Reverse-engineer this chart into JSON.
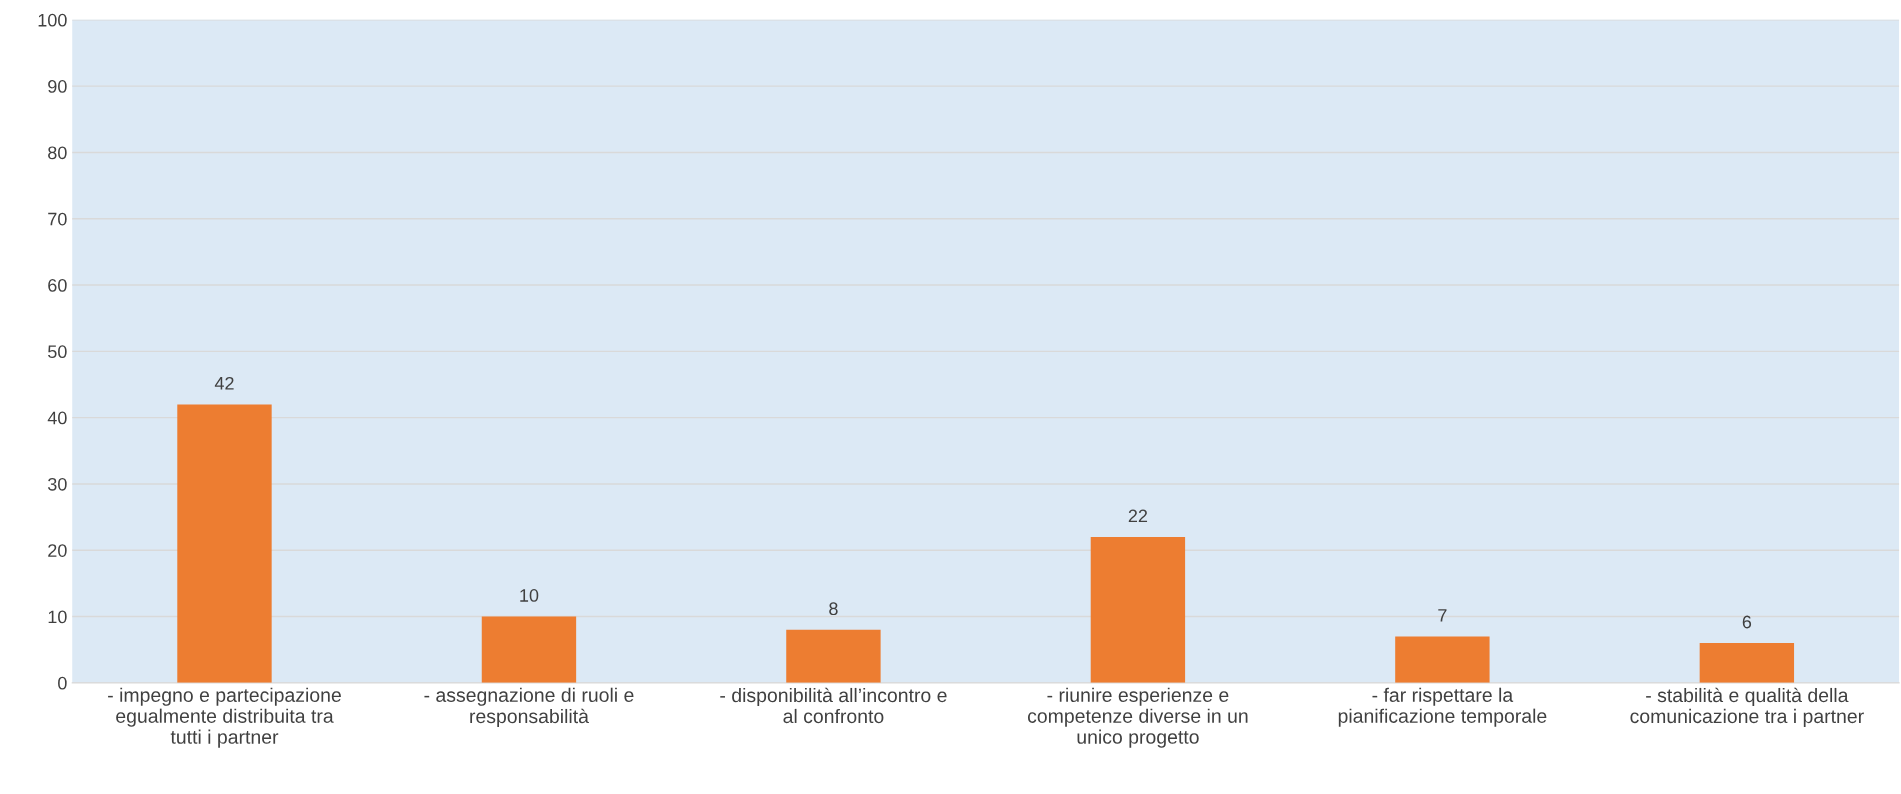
{
  "chart_data": {
    "type": "bar",
    "categories": [
      "- impegno e partecipazione\negualmente distribuita tra\ntutti i partner",
      "- assegnazione di ruoli e\nresponsabilità",
      "- disponibilità all’incontro e\nal confronto",
      "- riunire esperienze e\ncompetenze diverse in un\nunico progetto",
      "- far rispettare la\npianificazione temporale",
      "- stabilità e qualità della\ncomunicazione tra i partner"
    ],
    "values": [
      42,
      10,
      8,
      22,
      7,
      6
    ],
    "color": "#ed7d31",
    "ylim": [
      0,
      100
    ],
    "yticks": [
      0,
      10,
      20,
      30,
      40,
      50,
      60,
      70,
      80,
      90,
      100
    ],
    "grid": "y",
    "data_labels": true
  }
}
